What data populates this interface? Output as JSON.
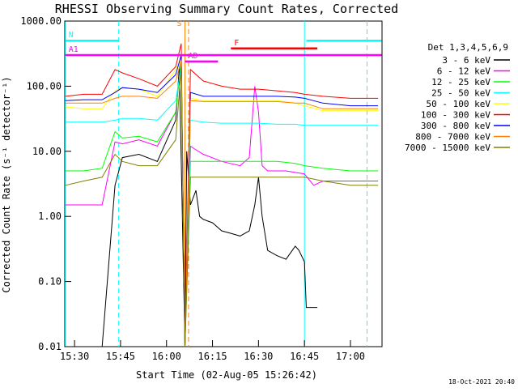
{
  "chart_data": {
    "type": "line",
    "title": "RHESSI Observing Summary Count Rates, Corrected",
    "xlabel": "Start Time (02-Aug-05 15:26:42)",
    "ylabel": "Corrected Count Rate (s⁻¹ detector⁻¹)",
    "timestamp": "18-Oct-2021 20:40",
    "yscale": "log",
    "ylim": [
      0.01,
      1000
    ],
    "xlim": [
      15.4467,
      17.1717
    ],
    "x_ticks": [
      {
        "value": 15.5,
        "label": "15:30"
      },
      {
        "value": 15.75,
        "label": "15:45"
      },
      {
        "value": 16.0,
        "label": "16:00"
      },
      {
        "value": 16.25,
        "label": "16:15"
      },
      {
        "value": 16.5,
        "label": "16:30"
      },
      {
        "value": 16.75,
        "label": "16:45"
      },
      {
        "value": 17.0,
        "label": "17:00"
      }
    ],
    "y_ticks": [
      {
        "value": 1000,
        "label": "1000.00"
      },
      {
        "value": 100,
        "label": "100.00"
      },
      {
        "value": 10,
        "label": "10.00"
      },
      {
        "value": 1,
        "label": "1.00"
      },
      {
        "value": 0.1,
        "label": "0.10"
      },
      {
        "value": 0.01,
        "label": "0.01"
      }
    ],
    "legend_header": "Det 1,3,4,5,6,9",
    "legend_position": "right",
    "series": [
      {
        "name": "3 - 6 keV",
        "color": "#000000",
        "x": [
          15.45,
          15.55,
          15.65,
          15.72,
          15.76,
          15.85,
          15.95,
          16.05,
          16.07,
          16.1,
          16.11,
          16.13,
          16.16,
          16.18,
          16.2,
          16.25,
          16.3,
          16.35,
          16.4,
          16.45,
          16.48,
          16.5,
          16.52,
          16.55,
          16.6,
          16.65,
          16.7,
          16.72,
          16.75,
          16.76,
          16.78,
          16.8,
          16.82
        ],
        "y": [
          0.0,
          0.0,
          0.0,
          3,
          8,
          9,
          7,
          30,
          200,
          0,
          10,
          1.5,
          2.5,
          1,
          0.9,
          0.8,
          0.6,
          0.55,
          0.5,
          0.6,
          1.5,
          4,
          1,
          0.3,
          0.25,
          0.22,
          0.35,
          0.3,
          0.2,
          0.04,
          0.04,
          0.04,
          0.04
        ]
      },
      {
        "name": "6 - 12 keV",
        "color": "#ff00ff",
        "x": [
          15.45,
          15.55,
          15.65,
          15.72,
          15.76,
          15.85,
          15.95,
          16.05,
          16.08,
          16.1,
          16.13,
          16.15,
          16.2,
          16.3,
          16.4,
          16.45,
          16.48,
          16.5,
          16.52,
          16.55,
          16.65,
          16.75,
          16.8,
          16.85,
          16.9,
          17.0,
          17.15
        ],
        "y": [
          1.5,
          1.5,
          1.5,
          14,
          13,
          15,
          12,
          40,
          250,
          0,
          12,
          11,
          9,
          7,
          6,
          8,
          100,
          40,
          6,
          5,
          5,
          4.5,
          3,
          3.5,
          3.5,
          3.5,
          3.5
        ]
      },
      {
        "name": "12 - 25 keV",
        "color": "#00ff00",
        "x": [
          15.45,
          15.55,
          15.65,
          15.72,
          15.76,
          15.85,
          15.95,
          16.05,
          16.08,
          16.1,
          16.13,
          16.2,
          16.3,
          16.4,
          16.5,
          16.6,
          16.7,
          16.75,
          16.85,
          17.0,
          17.15
        ],
        "y": [
          5,
          5,
          5.5,
          20,
          16,
          17,
          14,
          40,
          250,
          0,
          7,
          7,
          7,
          7,
          7,
          7,
          6.5,
          6,
          5.5,
          5,
          5
        ]
      },
      {
        "name": "25 - 50 keV",
        "color": "#00ffff",
        "x": [
          15.45,
          15.55,
          15.65,
          15.72,
          15.76,
          15.85,
          15.95,
          16.05,
          16.08,
          16.1,
          16.13,
          16.2,
          16.3,
          16.4,
          16.5,
          16.6,
          16.7,
          16.75,
          16.85,
          17.0,
          17.15
        ],
        "y": [
          28,
          28,
          28,
          30,
          32,
          32,
          30,
          60,
          200,
          0,
          30,
          28,
          27,
          27,
          27,
          26,
          26,
          25,
          25,
          25,
          25
        ]
      },
      {
        "name": "50 - 100 keV",
        "color": "#ffff00",
        "x": [
          15.45,
          15.55,
          15.65,
          15.72,
          15.76,
          15.85,
          15.95,
          16.05,
          16.08,
          16.1,
          16.13,
          16.2,
          16.3,
          16.4,
          16.5,
          16.6,
          16.7,
          16.75,
          16.85,
          17.0,
          17.15
        ],
        "y": [
          48,
          45,
          45,
          85,
          95,
          90,
          70,
          180,
          260,
          0,
          65,
          60,
          60,
          60,
          60,
          60,
          55,
          50,
          42,
          42,
          42
        ]
      },
      {
        "name": "100 - 300 keV",
        "color": "#ff0000",
        "x": [
          15.45,
          15.55,
          15.65,
          15.72,
          15.76,
          15.85,
          15.95,
          16.05,
          16.08,
          16.1,
          16.13,
          16.2,
          16.3,
          16.4,
          16.5,
          16.6,
          16.7,
          16.75,
          16.85,
          17.0,
          17.15
        ],
        "y": [
          70,
          75,
          75,
          180,
          160,
          130,
          100,
          200,
          450,
          0,
          180,
          120,
          100,
          90,
          90,
          85,
          80,
          75,
          70,
          65,
          65
        ]
      },
      {
        "name": "300 - 800 keV",
        "color": "#0000ff",
        "x": [
          15.45,
          15.55,
          15.65,
          15.72,
          15.76,
          15.85,
          15.95,
          16.05,
          16.08,
          16.1,
          16.13,
          16.2,
          16.3,
          16.4,
          16.5,
          16.6,
          16.7,
          16.75,
          16.85,
          17.0,
          17.15
        ],
        "y": [
          60,
          62,
          62,
          80,
          95,
          90,
          80,
          150,
          300,
          0,
          80,
          70,
          70,
          70,
          70,
          70,
          68,
          65,
          55,
          50,
          50
        ]
      },
      {
        "name": "800 - 7000 keV",
        "color": "#ff8000",
        "x": [
          15.45,
          15.55,
          15.65,
          15.72,
          15.76,
          15.85,
          15.95,
          16.05,
          16.08,
          16.1,
          16.13,
          16.2,
          16.3,
          16.4,
          16.5,
          16.6,
          16.7,
          16.75,
          16.85,
          17.0,
          17.15
        ],
        "y": [
          55,
          55,
          55,
          65,
          70,
          70,
          65,
          120,
          250,
          0,
          60,
          58,
          58,
          58,
          58,
          58,
          55,
          55,
          45,
          45,
          45
        ]
      },
      {
        "name": "7000 - 15000 keV",
        "color": "#808000",
        "x": [
          15.45,
          15.55,
          15.65,
          15.72,
          15.76,
          15.85,
          15.95,
          16.05,
          16.08,
          16.1,
          16.13,
          16.2,
          16.3,
          16.4,
          16.5,
          16.6,
          16.7,
          16.75,
          16.85,
          17.0,
          17.15
        ],
        "y": [
          3,
          3.5,
          4,
          9,
          7,
          6,
          6,
          15,
          200,
          0,
          4,
          4,
          4,
          4,
          4,
          4,
          4,
          4,
          3.5,
          3,
          3
        ]
      }
    ],
    "annotations": [
      {
        "label": "N",
        "color": "#00ffff",
        "y": 500,
        "x0": 15.45,
        "x1": 15.74
      },
      {
        "label": "",
        "color": "#00ffff",
        "y": 500,
        "x0": 16.76,
        "x1": 17.17
      },
      {
        "label": "S",
        "color": "#ff8000",
        "y": 750,
        "x0": 16.1,
        "x1": 16.1
      },
      {
        "label": "F",
        "color": "#ff0000",
        "y": 380,
        "x0": 16.35,
        "x1": 16.82
      },
      {
        "label": "AD",
        "color": "#ff00ff",
        "y": 240,
        "x0": 16.1,
        "x1": 16.28
      },
      {
        "label": "A1",
        "color": "#ff00ff",
        "y": 300,
        "x0": 15.45,
        "x1": 17.17
      }
    ],
    "vertical_lines": [
      {
        "x": 15.45,
        "color": "#00ffff",
        "style": "solid"
      },
      {
        "x": 15.74,
        "color": "#00ffff",
        "style": "dashed"
      },
      {
        "x": 16.1,
        "color": "#ff8000",
        "style": "solid"
      },
      {
        "x": 16.12,
        "color": "#ff8000",
        "style": "dashed"
      },
      {
        "x": 16.75,
        "color": "#00ffff",
        "style": "solid"
      },
      {
        "x": 17.09,
        "color": "#00ffff",
        "style": "dashed"
      }
    ]
  }
}
